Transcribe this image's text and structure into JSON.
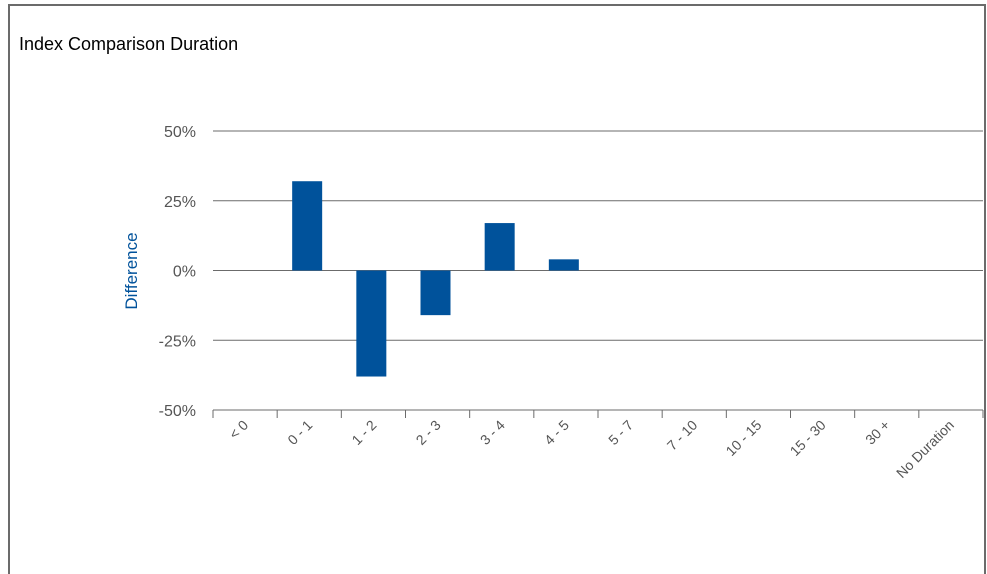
{
  "chart_data": {
    "type": "bar",
    "title": "Index Comparison Duration",
    "ylabel": "Difference",
    "xlabel": "",
    "categories": [
      "< 0",
      "0 - 1",
      "1 - 2",
      "2 - 3",
      "3 - 4",
      "4 - 5",
      "5 - 7",
      "7 - 10",
      "10 - 15",
      "15 - 30",
      "30 +",
      "No Duration"
    ],
    "values": [
      0,
      32,
      -38,
      -16,
      17,
      4,
      0,
      0,
      0,
      0,
      0,
      0
    ],
    "yticks": [
      {
        "value": 50,
        "label": "50%"
      },
      {
        "value": 25,
        "label": "25%"
      },
      {
        "value": 0,
        "label": "0%"
      },
      {
        "value": -25,
        "label": "-25%"
      },
      {
        "value": -50,
        "label": "-50%"
      }
    ],
    "ylim": [
      -50,
      50
    ],
    "grid": true,
    "legend": "none",
    "colors": {
      "bar": "#00529b",
      "ylabel": "#00529b",
      "grid": "#6b6b6b",
      "tick_text": "#555555",
      "frame": "#6b6b6b"
    }
  }
}
